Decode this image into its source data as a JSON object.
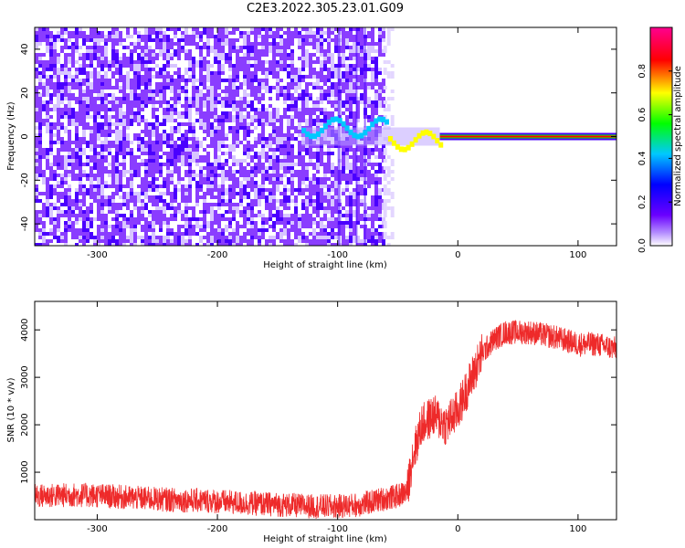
{
  "figure": {
    "title": "C2E3.2022.305.23.01.G09"
  },
  "chart_data": [
    {
      "type": "heatmap",
      "title": "",
      "xlabel": "Height of straight line (km)",
      "ylabel": "Frequency (Hz)",
      "xlim": [
        -352,
        132
      ],
      "ylim": [
        -50,
        50
      ],
      "x_ticks": [
        -300,
        -200,
        -100,
        0,
        100
      ],
      "y_ticks": [
        -40,
        -20,
        0,
        20,
        40
      ],
      "grid": false,
      "description_of_content": [
        {
          "x_range": [
            -352,
            -62
          ],
          "pattern": "broadband noise across all frequencies"
        },
        {
          "x_range": [
            -130,
            -15
          ],
          "pattern": "narrow signal near 0 Hz with small oscillation (~ -5 to 8 Hz)"
        },
        {
          "x_range": [
            -15,
            132
          ],
          "pattern": "steady narrow line at ~0 Hz, max amplitude"
        }
      ],
      "colorbar": {
        "label": "Normalized spectral amplitude",
        "range": [
          0,
          1
        ],
        "ticks": [
          "0.0",
          "0.2",
          "0.4",
          "0.6",
          "0.8"
        ],
        "colors": [
          "#ffffff",
          "#6a00ff",
          "#0000ff",
          "#00c8ff",
          "#00ff00",
          "#ffff00",
          "#ff0000",
          "#ff0090"
        ]
      }
    },
    {
      "type": "line",
      "title": "",
      "xlabel": "Height of straight line (km)",
      "ylabel": "SNR (10 * v/v)",
      "xlim": [
        -352,
        132
      ],
      "ylim": [
        0,
        4600
      ],
      "x_ticks": [
        -300,
        -200,
        -100,
        0,
        100
      ],
      "y_ticks": [
        1000,
        2000,
        3000,
        4000
      ],
      "grid": false,
      "series": [
        {
          "color": "#ee2a2a",
          "points": [
            {
              "x": -352,
              "y": 500
            },
            {
              "x": -320,
              "y": 520
            },
            {
              "x": -300,
              "y": 510
            },
            {
              "x": -270,
              "y": 460
            },
            {
              "x": -240,
              "y": 420
            },
            {
              "x": -210,
              "y": 400
            },
            {
              "x": -180,
              "y": 350
            },
            {
              "x": -150,
              "y": 320
            },
            {
              "x": -120,
              "y": 280
            },
            {
              "x": -100,
              "y": 280
            },
            {
              "x": -80,
              "y": 320
            },
            {
              "x": -65,
              "y": 420
            },
            {
              "x": -50,
              "y": 500
            },
            {
              "x": -42,
              "y": 600
            },
            {
              "x": -38,
              "y": 1300
            },
            {
              "x": -30,
              "y": 2000
            },
            {
              "x": -20,
              "y": 2200
            },
            {
              "x": -10,
              "y": 2000
            },
            {
              "x": 0,
              "y": 2300
            },
            {
              "x": 10,
              "y": 2900
            },
            {
              "x": 20,
              "y": 3500
            },
            {
              "x": 30,
              "y": 3800
            },
            {
              "x": 40,
              "y": 3950
            },
            {
              "x": 60,
              "y": 3950
            },
            {
              "x": 80,
              "y": 3850
            },
            {
              "x": 100,
              "y": 3700
            },
            {
              "x": 115,
              "y": 3700
            },
            {
              "x": 132,
              "y": 3600
            }
          ]
        }
      ]
    }
  ]
}
